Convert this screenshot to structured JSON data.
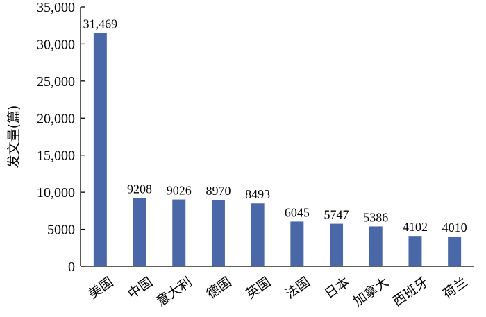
{
  "chart_data": {
    "type": "bar",
    "categories": [
      "美国",
      "中国",
      "意大利",
      "德国",
      "英国",
      "法国",
      "日本",
      "加拿大",
      "西班牙",
      "荷兰"
    ],
    "values": [
      31469,
      9208,
      9026,
      8970,
      8493,
      6045,
      5747,
      5386,
      4102,
      4010
    ],
    "value_labels": [
      "31,469",
      "9208",
      "9026",
      "8970",
      "8493",
      "6045",
      "5747",
      "5386",
      "4102",
      "4010"
    ],
    "ylabel": "发文量(篇)",
    "xlabel": "",
    "ylim": [
      0,
      35000
    ],
    "yticks": [
      0,
      5000,
      10000,
      15000,
      20000,
      25000,
      30000,
      35000
    ],
    "ytick_labels": [
      "0",
      "5000",
      "10,000",
      "15,000",
      "20,000",
      "25,000",
      "30,000",
      "35,000"
    ],
    "bar_color": "#4a68a8",
    "grid": false,
    "legend": "none"
  }
}
